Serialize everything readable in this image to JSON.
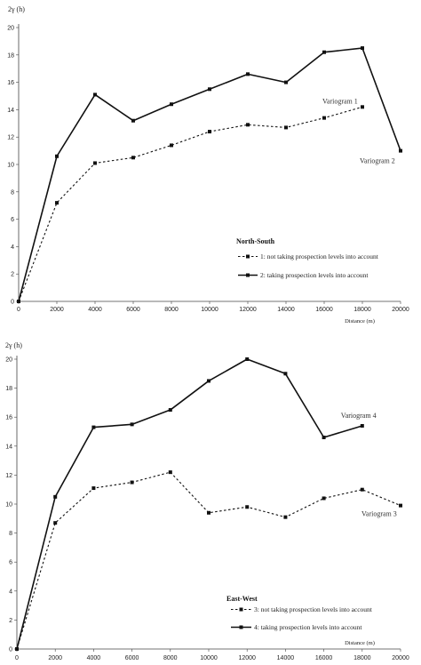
{
  "chart_data": [
    {
      "type": "line",
      "ylabel": "2γ (h)",
      "xlabel": "Distance (m)",
      "x": [
        0,
        2000,
        4000,
        6000,
        8000,
        10000,
        12000,
        14000,
        16000,
        18000,
        20000
      ],
      "x_tick_labels": [
        "0",
        "2000",
        "4000",
        "6000",
        "8000",
        "10000",
        "12000",
        "14000",
        "16000",
        "18000",
        "20000"
      ],
      "y_ticks": [
        0,
        2,
        4,
        6,
        8,
        10,
        12,
        14,
        16,
        18,
        20
      ],
      "ylim": [
        0,
        20
      ],
      "grid": false,
      "legend_title": "North-South",
      "legend_position": "bottom-right",
      "series": [
        {
          "name": "1: not taking prospection levels into account",
          "style": "dashed",
          "marker": "square",
          "x": [
            0,
            2000,
            4000,
            6000,
            8000,
            10000,
            12000,
            14000,
            16000,
            18000
          ],
          "values": [
            0,
            7.2,
            10.1,
            10.5,
            11.4,
            12.4,
            12.9,
            12.7,
            13.4,
            14.2
          ]
        },
        {
          "name": "2: taking prospection levels into account",
          "style": "solid",
          "marker": "square",
          "x": [
            0,
            2000,
            4000,
            6000,
            8000,
            10000,
            12000,
            14000,
            16000,
            18000,
            20000
          ],
          "values": [
            0,
            10.6,
            15.1,
            13.2,
            14.4,
            15.5,
            16.6,
            16.0,
            18.2,
            18.5,
            11.0
          ]
        }
      ],
      "annotations": [
        {
          "text": "Variogram 1",
          "x": 18000,
          "y": 14.2
        },
        {
          "text": "Variogram 2",
          "x": 20000,
          "y": 11.0
        }
      ]
    },
    {
      "type": "line",
      "ylabel": "2γ (h)",
      "xlabel": "Distance (m)",
      "x": [
        0,
        2000,
        4000,
        6000,
        8000,
        10000,
        12000,
        14000,
        16000,
        18000,
        20000
      ],
      "x_tick_labels": [
        "0",
        "2000",
        "4000",
        "6000",
        "8000",
        "10000",
        "12000",
        "14000",
        "16000",
        "18000",
        "20000"
      ],
      "y_ticks": [
        0,
        2,
        4,
        6,
        8,
        10,
        12,
        14,
        16,
        18,
        20
      ],
      "ylim": [
        0,
        20
      ],
      "grid": false,
      "legend_title": "East-West",
      "legend_position": "bottom-right",
      "series": [
        {
          "name": "3: not taking prospection levels into account",
          "style": "dashed",
          "marker": "square",
          "x": [
            0,
            2000,
            4000,
            6000,
            8000,
            10000,
            12000,
            14000,
            16000,
            18000,
            20000
          ],
          "values": [
            0,
            8.7,
            11.1,
            11.5,
            12.2,
            9.4,
            9.8,
            9.1,
            10.4,
            11.0,
            9.9
          ]
        },
        {
          "name": "4: taking prospection levels into account",
          "style": "solid",
          "marker": "square",
          "x": [
            0,
            2000,
            4000,
            6000,
            8000,
            10000,
            12000,
            14000,
            16000,
            18000
          ],
          "values": [
            0,
            10.5,
            15.3,
            15.5,
            16.5,
            18.5,
            20.0,
            19.0,
            14.6,
            15.4
          ]
        }
      ],
      "annotations": [
        {
          "text": "Variogram 4",
          "x": 18000,
          "y": 15.4
        },
        {
          "text": "Variogram 3",
          "x": 20000,
          "y": 9.9
        }
      ]
    }
  ]
}
